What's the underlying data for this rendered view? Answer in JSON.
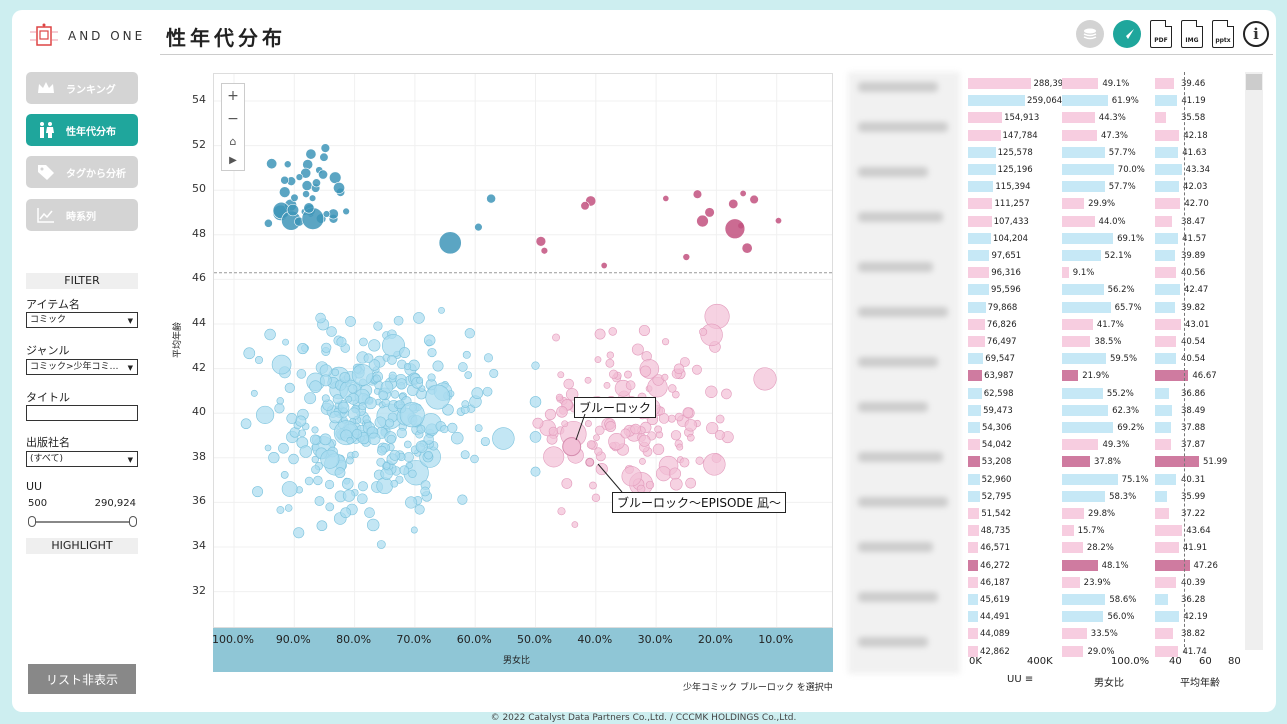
{
  "brand": {
    "name": "AND ONE"
  },
  "page": {
    "title": "性年代分布"
  },
  "header_icons": {
    "pdf": "PDF",
    "img": "IMG",
    "pptx": "pptx",
    "info": "i",
    "layers": "layers-icon",
    "bird": "bird-icon"
  },
  "nav": [
    {
      "label": "ランキング",
      "icon": "crown-icon",
      "active": false
    },
    {
      "label": "性年代分布",
      "icon": "people-icon",
      "active": true
    },
    {
      "label": "タグから分析",
      "icon": "tag-icon",
      "active": false
    },
    {
      "label": "時系列",
      "icon": "line-chart-icon",
      "active": false
    }
  ],
  "filter": {
    "title": "FILTER",
    "item_label": "アイテム名",
    "item_value": "コミック",
    "genre_label": "ジャンル",
    "genre_value": "コミック>少年コミ…",
    "title_label": "タイトル",
    "title_value": "",
    "publisher_label": "出版社名",
    "publisher_value": "(すべて)",
    "uu_label": "UU",
    "uu_min": "500",
    "uu_max": "290,924",
    "highlight": "HIGHLIGHT"
  },
  "hide_list_button": "リスト非表示",
  "selection_note": "少年コミック ブルーロック を選択中",
  "footer": "© 2022 Catalyst Data Partners Co.,Ltd. / CCCMK HOLDINGS Co.,Ltd.",
  "colors": {
    "teal": "#1fa69c",
    "male": "#a9dcef",
    "female": "#f2bfd6",
    "male_dark": "#3e95b8",
    "female_dark": "#c2517f",
    "band": "#8fc6d6"
  },
  "chart_data": {
    "type": "scatter",
    "xlabel": "男女比",
    "ylabel": "平均年齢",
    "x_ticks": [
      "100.0%",
      "90.0%",
      "80.0%",
      "70.0%",
      "60.0%",
      "50.0%",
      "40.0%",
      "30.0%",
      "20.0%",
      "10.0%"
    ],
    "y_ticks": [
      "54",
      "52",
      "50",
      "48",
      "46",
      "44",
      "42",
      "40",
      "38",
      "36",
      "34",
      "32"
    ],
    "x_reversed": true,
    "xlim": [
      0.0,
      1.02
    ],
    "ylim": [
      30.8,
      55.0
    ],
    "reference_y": 46.3,
    "highlighted": [
      {
        "label": "ブルーロック",
        "x": 0.44,
        "y": 38.5
      },
      {
        "label": "ブルーロック～EPISODE 凪～",
        "x": 0.41,
        "y": 37.8
      }
    ]
  },
  "table": {
    "rows": [
      {
        "uu": "288,396",
        "ratio": "49.1%",
        "age": "39.46",
        "r": 0.491,
        "u": 288396,
        "a": 39.46,
        "hl": false
      },
      {
        "uu": "259,064",
        "ratio": "61.9%",
        "age": "41.19",
        "r": 0.619,
        "u": 259064,
        "a": 41.19,
        "hl": false
      },
      {
        "uu": "154,913",
        "ratio": "44.3%",
        "age": "35.58",
        "r": 0.443,
        "u": 154913,
        "a": 35.58,
        "hl": false
      },
      {
        "uu": "147,784",
        "ratio": "47.3%",
        "age": "42.18",
        "r": 0.473,
        "u": 147784,
        "a": 42.18,
        "hl": false
      },
      {
        "uu": "125,578",
        "ratio": "57.7%",
        "age": "41.63",
        "r": 0.577,
        "u": 125578,
        "a": 41.63,
        "hl": false
      },
      {
        "uu": "125,196",
        "ratio": "70.0%",
        "age": "43.34",
        "r": 0.7,
        "u": 125196,
        "a": 43.34,
        "hl": false
      },
      {
        "uu": "115,394",
        "ratio": "57.7%",
        "age": "42.03",
        "r": 0.577,
        "u": 115394,
        "a": 42.03,
        "hl": false
      },
      {
        "uu": "111,257",
        "ratio": "29.9%",
        "age": "42.70",
        "r": 0.299,
        "u": 111257,
        "a": 42.7,
        "hl": false
      },
      {
        "uu": "107,433",
        "ratio": "44.0%",
        "age": "38.47",
        "r": 0.44,
        "u": 107433,
        "a": 38.47,
        "hl": false
      },
      {
        "uu": "104,204",
        "ratio": "69.1%",
        "age": "41.57",
        "r": 0.691,
        "u": 104204,
        "a": 41.57,
        "hl": false
      },
      {
        "uu": "97,651",
        "ratio": "52.1%",
        "age": "39.89",
        "r": 0.521,
        "u": 97651,
        "a": 39.89,
        "hl": false
      },
      {
        "uu": "96,316",
        "ratio": "9.1%",
        "age": "40.56",
        "r": 0.091,
        "u": 96316,
        "a": 40.56,
        "hl": false
      },
      {
        "uu": "95,596",
        "ratio": "56.2%",
        "age": "42.47",
        "r": 0.562,
        "u": 95596,
        "a": 42.47,
        "hl": false
      },
      {
        "uu": "79,868",
        "ratio": "65.7%",
        "age": "39.82",
        "r": 0.657,
        "u": 79868,
        "a": 39.82,
        "hl": false
      },
      {
        "uu": "76,826",
        "ratio": "41.7%",
        "age": "43.01",
        "r": 0.417,
        "u": 76826,
        "a": 43.01,
        "hl": false
      },
      {
        "uu": "76,497",
        "ratio": "38.5%",
        "age": "40.54",
        "r": 0.385,
        "u": 76497,
        "a": 40.54,
        "hl": false
      },
      {
        "uu": "69,547",
        "ratio": "59.5%",
        "age": "40.54",
        "r": 0.595,
        "u": 69547,
        "a": 40.54,
        "hl": false
      },
      {
        "uu": "63,987",
        "ratio": "21.9%",
        "age": "46.67",
        "r": 0.219,
        "u": 63987,
        "a": 46.67,
        "hl": true
      },
      {
        "uu": "62,598",
        "ratio": "55.2%",
        "age": "36.86",
        "r": 0.552,
        "u": 62598,
        "a": 36.86,
        "hl": false
      },
      {
        "uu": "59,473",
        "ratio": "62.3%",
        "age": "38.49",
        "r": 0.623,
        "u": 59473,
        "a": 38.49,
        "hl": false
      },
      {
        "uu": "54,306",
        "ratio": "69.2%",
        "age": "37.88",
        "r": 0.692,
        "u": 54306,
        "a": 37.88,
        "hl": false
      },
      {
        "uu": "54,042",
        "ratio": "49.3%",
        "age": "37.87",
        "r": 0.493,
        "u": 54042,
        "a": 37.87,
        "hl": false
      },
      {
        "uu": "53,208",
        "ratio": "37.8%",
        "age": "51.99",
        "r": 0.378,
        "u": 53208,
        "a": 51.99,
        "hl": true
      },
      {
        "uu": "52,960",
        "ratio": "75.1%",
        "age": "40.31",
        "r": 0.751,
        "u": 52960,
        "a": 40.31,
        "hl": false
      },
      {
        "uu": "52,795",
        "ratio": "58.3%",
        "age": "35.99",
        "r": 0.583,
        "u": 52795,
        "a": 35.99,
        "hl": false
      },
      {
        "uu": "51,542",
        "ratio": "29.8%",
        "age": "37.22",
        "r": 0.298,
        "u": 51542,
        "a": 37.22,
        "hl": false
      },
      {
        "uu": "48,735",
        "ratio": "15.7%",
        "age": "43.64",
        "r": 0.157,
        "u": 48735,
        "a": 43.64,
        "hl": false
      },
      {
        "uu": "46,571",
        "ratio": "28.2%",
        "age": "41.91",
        "r": 0.282,
        "u": 46571,
        "a": 41.91,
        "hl": false
      },
      {
        "uu": "46,272",
        "ratio": "48.1%",
        "age": "47.26",
        "r": 0.481,
        "u": 46272,
        "a": 47.26,
        "hl": true
      },
      {
        "uu": "46,187",
        "ratio": "23.9%",
        "age": "40.39",
        "r": 0.239,
        "u": 46187,
        "a": 40.39,
        "hl": false
      },
      {
        "uu": "45,619",
        "ratio": "58.6%",
        "age": "36.28",
        "r": 0.586,
        "u": 45619,
        "a": 36.28,
        "hl": false
      },
      {
        "uu": "44,491",
        "ratio": "56.0%",
        "age": "42.19",
        "r": 0.56,
        "u": 44491,
        "a": 42.19,
        "hl": false
      },
      {
        "uu": "44,089",
        "ratio": "33.5%",
        "age": "38.82",
        "r": 0.335,
        "u": 44089,
        "a": 38.82,
        "hl": false
      },
      {
        "uu": "42,862",
        "ratio": "29.0%",
        "age": "41.74",
        "r": 0.29,
        "u": 42862,
        "a": 41.74,
        "hl": false
      }
    ],
    "uu_axis": [
      "0K",
      "400K"
    ],
    "ratio_axis": [
      "100.0%"
    ],
    "age_axis": [
      "40",
      "60",
      "80"
    ],
    "col_uu": "UU",
    "col_ratio": "男女比",
    "col_age": "平均年齢"
  }
}
